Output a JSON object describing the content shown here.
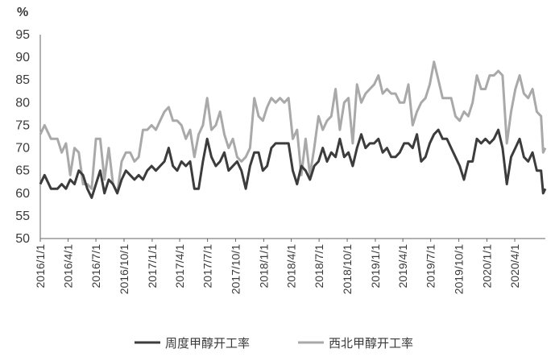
{
  "chart_data": {
    "type": "line",
    "ylabel": "%",
    "ylim": [
      50,
      95
    ],
    "yticks": [
      50,
      55,
      60,
      65,
      70,
      75,
      80,
      85,
      90,
      95
    ],
    "xlim": [
      "2016-01-01",
      "2020-07-10"
    ],
    "xticks": [
      "2016/1/1",
      "2016/4/1",
      "2016/7/1",
      "2016/10/1",
      "2017/1/1",
      "2017/4/1",
      "2017/7/1",
      "2017/10/1",
      "2018/1/1",
      "2018/4/1",
      "2018/7/1",
      "2018/10/1",
      "2019/1/1",
      "2019/4/1",
      "2019/7/1",
      "2019/10/1",
      "2020/1/1",
      "2020/4/1"
    ],
    "grid": false,
    "legend_position": "bottom",
    "series": [
      {
        "name": "周度甲醇开工率",
        "color": "#3c3c3c",
        "points": [
          [
            "2016-01-01",
            62
          ],
          [
            "2016-01-15",
            64
          ],
          [
            "2016-02-05",
            61
          ],
          [
            "2016-02-26",
            61
          ],
          [
            "2016-03-11",
            62
          ],
          [
            "2016-03-25",
            61
          ],
          [
            "2016-04-08",
            63
          ],
          [
            "2016-04-22",
            62
          ],
          [
            "2016-05-06",
            65
          ],
          [
            "2016-05-20",
            64
          ],
          [
            "2016-06-03",
            61
          ],
          [
            "2016-06-17",
            59
          ],
          [
            "2016-07-01",
            62
          ],
          [
            "2016-07-15",
            65
          ],
          [
            "2016-07-29",
            60
          ],
          [
            "2016-08-12",
            63
          ],
          [
            "2016-08-26",
            62
          ],
          [
            "2016-09-09",
            60
          ],
          [
            "2016-09-23",
            63
          ],
          [
            "2016-10-07",
            65
          ],
          [
            "2016-10-21",
            64
          ],
          [
            "2016-11-04",
            63
          ],
          [
            "2016-11-18",
            64
          ],
          [
            "2016-12-02",
            63
          ],
          [
            "2016-12-16",
            65
          ],
          [
            "2016-12-30",
            66
          ],
          [
            "2017-01-13",
            65
          ],
          [
            "2017-01-27",
            66
          ],
          [
            "2017-02-10",
            67
          ],
          [
            "2017-02-24",
            70
          ],
          [
            "2017-03-10",
            66
          ],
          [
            "2017-03-24",
            65
          ],
          [
            "2017-04-07",
            67
          ],
          [
            "2017-04-21",
            66
          ],
          [
            "2017-05-05",
            67
          ],
          [
            "2017-05-19",
            61
          ],
          [
            "2017-06-02",
            61
          ],
          [
            "2017-06-16",
            67
          ],
          [
            "2017-06-30",
            72
          ],
          [
            "2017-07-14",
            68
          ],
          [
            "2017-07-28",
            66
          ],
          [
            "2017-08-11",
            67
          ],
          [
            "2017-08-25",
            69
          ],
          [
            "2017-09-08",
            65
          ],
          [
            "2017-09-22",
            66
          ],
          [
            "2017-10-06",
            67
          ],
          [
            "2017-10-20",
            65
          ],
          [
            "2017-11-03",
            61
          ],
          [
            "2017-11-17",
            66
          ],
          [
            "2017-12-01",
            69
          ],
          [
            "2017-12-15",
            69
          ],
          [
            "2017-12-29",
            65
          ],
          [
            "2018-01-12",
            66
          ],
          [
            "2018-01-26",
            70
          ],
          [
            "2018-02-09",
            71
          ],
          [
            "2018-02-23",
            71
          ],
          [
            "2018-03-09",
            71
          ],
          [
            "2018-03-23",
            71
          ],
          [
            "2018-04-06",
            65
          ],
          [
            "2018-04-20",
            62
          ],
          [
            "2018-05-04",
            66
          ],
          [
            "2018-05-18",
            65
          ],
          [
            "2018-06-01",
            63
          ],
          [
            "2018-06-15",
            66
          ],
          [
            "2018-06-29",
            67
          ],
          [
            "2018-07-13",
            70
          ],
          [
            "2018-07-27",
            67
          ],
          [
            "2018-08-10",
            69
          ],
          [
            "2018-08-24",
            68
          ],
          [
            "2018-09-07",
            72
          ],
          [
            "2018-09-21",
            68
          ],
          [
            "2018-10-05",
            69
          ],
          [
            "2018-10-19",
            66
          ],
          [
            "2018-11-02",
            70
          ],
          [
            "2018-11-16",
            73
          ],
          [
            "2018-11-30",
            70
          ],
          [
            "2018-12-14",
            71
          ],
          [
            "2018-12-28",
            71
          ],
          [
            "2019-01-11",
            72
          ],
          [
            "2019-01-25",
            69
          ],
          [
            "2019-02-08",
            70
          ],
          [
            "2019-02-22",
            68
          ],
          [
            "2019-03-08",
            68
          ],
          [
            "2019-03-22",
            69
          ],
          [
            "2019-04-05",
            71
          ],
          [
            "2019-04-19",
            71
          ],
          [
            "2019-05-03",
            70
          ],
          [
            "2019-05-17",
            73
          ],
          [
            "2019-05-31",
            67
          ],
          [
            "2019-06-14",
            68
          ],
          [
            "2019-06-28",
            71
          ],
          [
            "2019-07-12",
            73
          ],
          [
            "2019-07-26",
            74
          ],
          [
            "2019-08-09",
            72
          ],
          [
            "2019-08-23",
            72
          ],
          [
            "2019-09-06",
            70
          ],
          [
            "2019-09-20",
            68
          ],
          [
            "2019-10-04",
            66
          ],
          [
            "2019-10-18",
            63
          ],
          [
            "2019-11-01",
            67
          ],
          [
            "2019-11-15",
            67
          ],
          [
            "2019-11-29",
            72
          ],
          [
            "2019-12-13",
            71
          ],
          [
            "2019-12-27",
            72
          ],
          [
            "2020-01-10",
            71
          ],
          [
            "2020-01-24",
            72
          ],
          [
            "2020-02-07",
            74
          ],
          [
            "2020-02-21",
            70
          ],
          [
            "2020-03-06",
            62
          ],
          [
            "2020-03-20",
            68
          ],
          [
            "2020-04-03",
            70
          ],
          [
            "2020-04-17",
            72
          ],
          [
            "2020-05-01",
            68
          ],
          [
            "2020-05-15",
            67
          ],
          [
            "2020-05-29",
            69
          ],
          [
            "2020-06-12",
            65
          ],
          [
            "2020-06-26",
            65
          ],
          [
            "2020-07-03",
            60
          ],
          [
            "2020-07-10",
            61
          ]
        ]
      },
      {
        "name": "西北甲醇开工率",
        "color": "#a9a9a9",
        "points": [
          [
            "2016-01-01",
            73
          ],
          [
            "2016-01-15",
            75
          ],
          [
            "2016-02-05",
            72
          ],
          [
            "2016-02-26",
            72
          ],
          [
            "2016-03-11",
            69
          ],
          [
            "2016-03-25",
            71
          ],
          [
            "2016-04-08",
            64
          ],
          [
            "2016-04-22",
            70
          ],
          [
            "2016-05-06",
            69
          ],
          [
            "2016-05-20",
            62
          ],
          [
            "2016-06-03",
            62
          ],
          [
            "2016-06-17",
            61
          ],
          [
            "2016-07-01",
            72
          ],
          [
            "2016-07-15",
            72
          ],
          [
            "2016-07-29",
            63
          ],
          [
            "2016-08-12",
            70
          ],
          [
            "2016-08-26",
            62
          ],
          [
            "2016-09-09",
            60
          ],
          [
            "2016-09-23",
            67
          ],
          [
            "2016-10-07",
            69
          ],
          [
            "2016-10-21",
            69
          ],
          [
            "2016-11-04",
            67
          ],
          [
            "2016-11-18",
            68
          ],
          [
            "2016-12-02",
            74
          ],
          [
            "2016-12-16",
            74
          ],
          [
            "2016-12-30",
            75
          ],
          [
            "2017-01-13",
            74
          ],
          [
            "2017-01-27",
            76
          ],
          [
            "2017-02-10",
            78
          ],
          [
            "2017-02-24",
            79
          ],
          [
            "2017-03-10",
            76
          ],
          [
            "2017-03-24",
            76
          ],
          [
            "2017-04-07",
            75
          ],
          [
            "2017-04-21",
            72
          ],
          [
            "2017-05-05",
            74
          ],
          [
            "2017-05-19",
            68
          ],
          [
            "2017-06-02",
            73
          ],
          [
            "2017-06-16",
            75
          ],
          [
            "2017-06-30",
            81
          ],
          [
            "2017-07-14",
            74
          ],
          [
            "2017-07-28",
            75
          ],
          [
            "2017-08-11",
            78
          ],
          [
            "2017-08-25",
            73
          ],
          [
            "2017-09-08",
            70
          ],
          [
            "2017-09-22",
            72
          ],
          [
            "2017-10-06",
            68
          ],
          [
            "2017-10-20",
            67
          ],
          [
            "2017-11-03",
            68
          ],
          [
            "2017-11-17",
            70
          ],
          [
            "2017-12-01",
            81
          ],
          [
            "2017-12-15",
            77
          ],
          [
            "2017-12-29",
            76
          ],
          [
            "2018-01-12",
            79
          ],
          [
            "2018-01-26",
            81
          ],
          [
            "2018-02-09",
            80
          ],
          [
            "2018-02-23",
            81
          ],
          [
            "2018-03-09",
            80
          ],
          [
            "2018-03-23",
            81
          ],
          [
            "2018-04-06",
            72
          ],
          [
            "2018-04-20",
            74
          ],
          [
            "2018-05-04",
            64
          ],
          [
            "2018-05-18",
            72
          ],
          [
            "2018-06-01",
            64
          ],
          [
            "2018-06-15",
            70
          ],
          [
            "2018-06-29",
            77
          ],
          [
            "2018-07-13",
            74
          ],
          [
            "2018-07-27",
            76
          ],
          [
            "2018-08-10",
            77
          ],
          [
            "2018-08-24",
            83
          ],
          [
            "2018-09-07",
            74
          ],
          [
            "2018-09-21",
            80
          ],
          [
            "2018-10-05",
            81
          ],
          [
            "2018-10-19",
            71
          ],
          [
            "2018-11-02",
            84
          ],
          [
            "2018-11-16",
            80
          ],
          [
            "2018-11-30",
            82
          ],
          [
            "2018-12-14",
            83
          ],
          [
            "2018-12-28",
            84
          ],
          [
            "2019-01-11",
            86
          ],
          [
            "2019-01-25",
            82
          ],
          [
            "2019-02-08",
            83
          ],
          [
            "2019-02-22",
            82
          ],
          [
            "2019-03-08",
            82
          ],
          [
            "2019-03-22",
            80
          ],
          [
            "2019-04-05",
            80
          ],
          [
            "2019-04-19",
            84
          ],
          [
            "2019-05-03",
            75
          ],
          [
            "2019-05-17",
            78
          ],
          [
            "2019-05-31",
            80
          ],
          [
            "2019-06-14",
            81
          ],
          [
            "2019-06-28",
            84
          ],
          [
            "2019-07-12",
            89
          ],
          [
            "2019-07-26",
            85
          ],
          [
            "2019-08-09",
            81
          ],
          [
            "2019-08-23",
            81
          ],
          [
            "2019-09-06",
            81
          ],
          [
            "2019-09-20",
            77
          ],
          [
            "2019-10-04",
            76
          ],
          [
            "2019-10-18",
            78
          ],
          [
            "2019-11-01",
            77
          ],
          [
            "2019-11-15",
            80
          ],
          [
            "2019-11-29",
            86
          ],
          [
            "2019-12-13",
            83
          ],
          [
            "2019-12-27",
            83
          ],
          [
            "2020-01-10",
            86
          ],
          [
            "2020-01-24",
            86
          ],
          [
            "2020-02-07",
            87
          ],
          [
            "2020-02-21",
            86
          ],
          [
            "2020-03-06",
            71
          ],
          [
            "2020-03-20",
            78
          ],
          [
            "2020-04-03",
            83
          ],
          [
            "2020-04-17",
            86
          ],
          [
            "2020-05-01",
            82
          ],
          [
            "2020-05-15",
            81
          ],
          [
            "2020-05-29",
            83
          ],
          [
            "2020-06-12",
            78
          ],
          [
            "2020-06-26",
            77
          ],
          [
            "2020-07-03",
            69
          ],
          [
            "2020-07-10",
            70
          ]
        ]
      }
    ]
  }
}
